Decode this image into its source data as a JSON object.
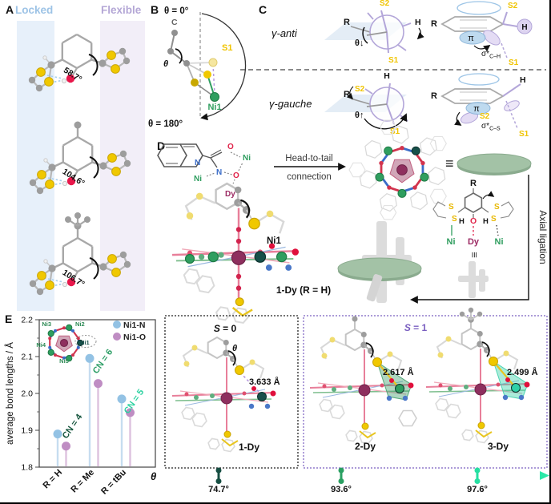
{
  "panels": {
    "A": {
      "label": "A",
      "locked": "Locked",
      "flexible": "Flexible",
      "colors": {
        "locked_text": "#9dc3e6",
        "flexible_text": "#b4a7d6",
        "locked_band": "#e7f0fa",
        "flexible_band": "#f2eef8"
      },
      "molecules": [
        {
          "angle": "58.7°",
          "substituent": "H"
        },
        {
          "angle": "104.6°",
          "substituent": "Me"
        },
        {
          "angle": "106.7°",
          "substituent": "tBu"
        }
      ]
    },
    "B": {
      "label": "B",
      "theta_top": "θ = 0°",
      "theta_bottom": "θ = 180°",
      "c": "C",
      "theta": "θ",
      "s1": "S1",
      "ni1": "Ni1"
    },
    "C": {
      "label": "C",
      "rows": [
        {
          "name": "γ-anti",
          "r": "R",
          "s2": "S2",
          "s1": "S1",
          "h": "H",
          "theta": "θ↓",
          "r2": "R",
          "s2b": "S2",
          "s1b": "S1",
          "hb": "H",
          "pi": "π",
          "sigma": "σ*",
          "sigma_bond": "C–H"
        },
        {
          "name": "γ-gauche",
          "r": "R",
          "s2": "S2",
          "s1": "S1",
          "h": "H",
          "theta": "θ↑",
          "r2": "R",
          "s2b": "S2",
          "s1b": "S1",
          "hb": "H",
          "pi": "π",
          "sigma": "σ*",
          "sigma_bond": "C–S"
        }
      ]
    },
    "D": {
      "label": "D",
      "scheme": {
        "o_top": "O",
        "ni_right": "Ni",
        "n_ring": "N",
        "n_center": "N",
        "ni_left": "Ni",
        "o_center": "O",
        "dy": "Dy"
      },
      "arrow_line1": "Head-to-tail",
      "arrow_line2": "connection",
      "equiv": "≡",
      "equiv_rot": "≡",
      "axial": "Axial ligation",
      "ligand": {
        "r": "R",
        "s_tl": "S",
        "s_bl": "S",
        "s_tr": "S",
        "s_br": "S",
        "h_l": "H",
        "h_r": "H",
        "o": "O",
        "ni_l": "Ni",
        "dy": "Dy",
        "ni_r": "Ni"
      },
      "ni1": "Ni1",
      "compound": "1-Dy (R = H)"
    },
    "E": {
      "label": "E",
      "inset": {
        "ni1": "Ni1",
        "ni2": "Ni2",
        "ni3": "Ni3",
        "ni4": "Ni4",
        "ni5": "Ni5"
      },
      "box1": {
        "spin_s": "S",
        "spin_rest": " = 0",
        "theta": "θ",
        "distance": "3.633 Å",
        "compound": "1-Dy"
      },
      "box2": {
        "spin_s": "S",
        "spin_rest": " = 1",
        "mol1": {
          "distance": "2.617 Å",
          "compound": "2-Dy"
        },
        "mol2": {
          "distance": "2.499 Å",
          "compound": "3-Dy"
        }
      },
      "box_colors": {
        "box1_border": "#222222",
        "box2_border": "#7a5fc0",
        "spin1_text": "#7a5fc0"
      },
      "axis": {
        "theta": "θ",
        "gradient": [
          "#1d5045",
          "#2be8a8"
        ],
        "ticks": [
          {
            "label": "74.7°",
            "color": "#174f43"
          },
          {
            "label": "93.6°",
            "color": "#2aa062"
          },
          {
            "label": "97.6°",
            "color": "#26dfa2"
          }
        ]
      }
    }
  },
  "chart_data": {
    "type": "scatter",
    "title": "",
    "ylabel": "average bond lengths / Å",
    "xlabel": "",
    "ylim": [
      1.8,
      2.2
    ],
    "yticks": [
      1.8,
      1.9,
      2.0,
      2.1,
      2.2
    ],
    "grid": false,
    "legend_position": "top-right",
    "categories": [
      "R = H",
      "R = Me",
      "R = tBu"
    ],
    "series": [
      {
        "name": "Ni1-N",
        "color": "#93c2e4",
        "stem": "#c6ddf0",
        "values": [
          1.89,
          2.095,
          1.985
        ]
      },
      {
        "name": "Ni1-O",
        "color": "#bf8dc3",
        "stem": "#ddc2df",
        "values": [
          1.857,
          2.027,
          1.948
        ]
      }
    ],
    "annotations": [
      {
        "text": "CN = 4",
        "color": "#14543c"
      },
      {
        "text": "CN = 6",
        "color": "#2d9e66"
      },
      {
        "text": "CN = 5",
        "color": "#2bd1a0"
      }
    ]
  }
}
